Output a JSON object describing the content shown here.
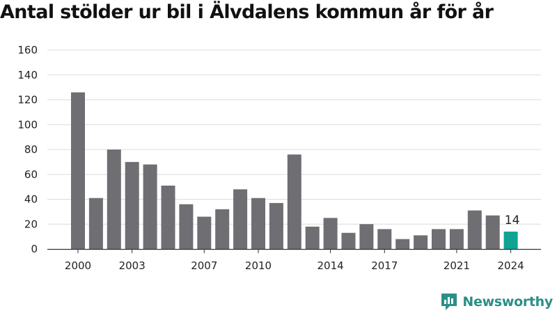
{
  "title": "Antal stölder ur bil i Älvdalens kommun år för år",
  "brand": {
    "name": "Newsworthy",
    "icon": "newsworthy-logo-icon",
    "color": "#2a8f86"
  },
  "colors": {
    "bar": "#6f6e73",
    "highlight": "#10a393",
    "grid": "#dcdcdc",
    "axis": "#333333"
  },
  "chart_data": {
    "type": "bar",
    "title": "Antal stölder ur bil i Älvdalens kommun år för år",
    "xlabel": "",
    "ylabel": "",
    "categories": [
      "2000",
      "2001",
      "2002",
      "2003",
      "2004",
      "2005",
      "2006",
      "2007",
      "2008",
      "2009",
      "2010",
      "2011",
      "2012",
      "2013",
      "2014",
      "2015",
      "2016",
      "2017",
      "2018",
      "2019",
      "2020",
      "2021",
      "2022",
      "2023",
      "2024"
    ],
    "values": [
      126,
      41,
      80,
      70,
      68,
      51,
      36,
      26,
      32,
      48,
      41,
      37,
      76,
      18,
      25,
      13,
      20,
      16,
      8,
      11,
      16,
      16,
      31,
      27,
      14
    ],
    "x_tick_labels": [
      "2000",
      "2003",
      "2007",
      "2010",
      "2014",
      "2017",
      "2021",
      "2024"
    ],
    "y_ticks": [
      0,
      20,
      40,
      60,
      80,
      100,
      120,
      140,
      160
    ],
    "ylim": [
      0,
      160
    ],
    "grid": true,
    "highlight": {
      "category": "2024",
      "label": "14"
    }
  }
}
